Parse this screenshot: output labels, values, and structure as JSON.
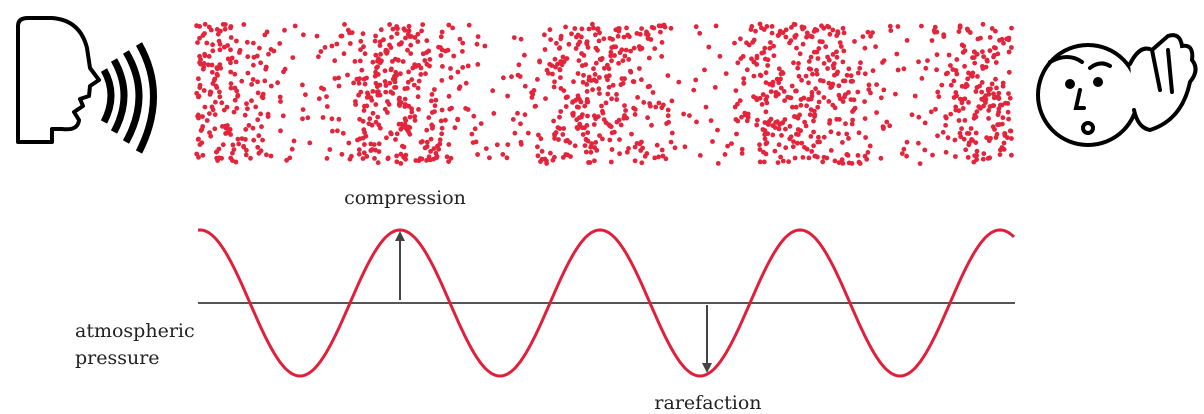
{
  "labels": {
    "compression": "compression",
    "atmospheric_pressure": [
      "atmospheric",
      "pressure"
    ],
    "rarefaction": "rarefaction"
  }
}
